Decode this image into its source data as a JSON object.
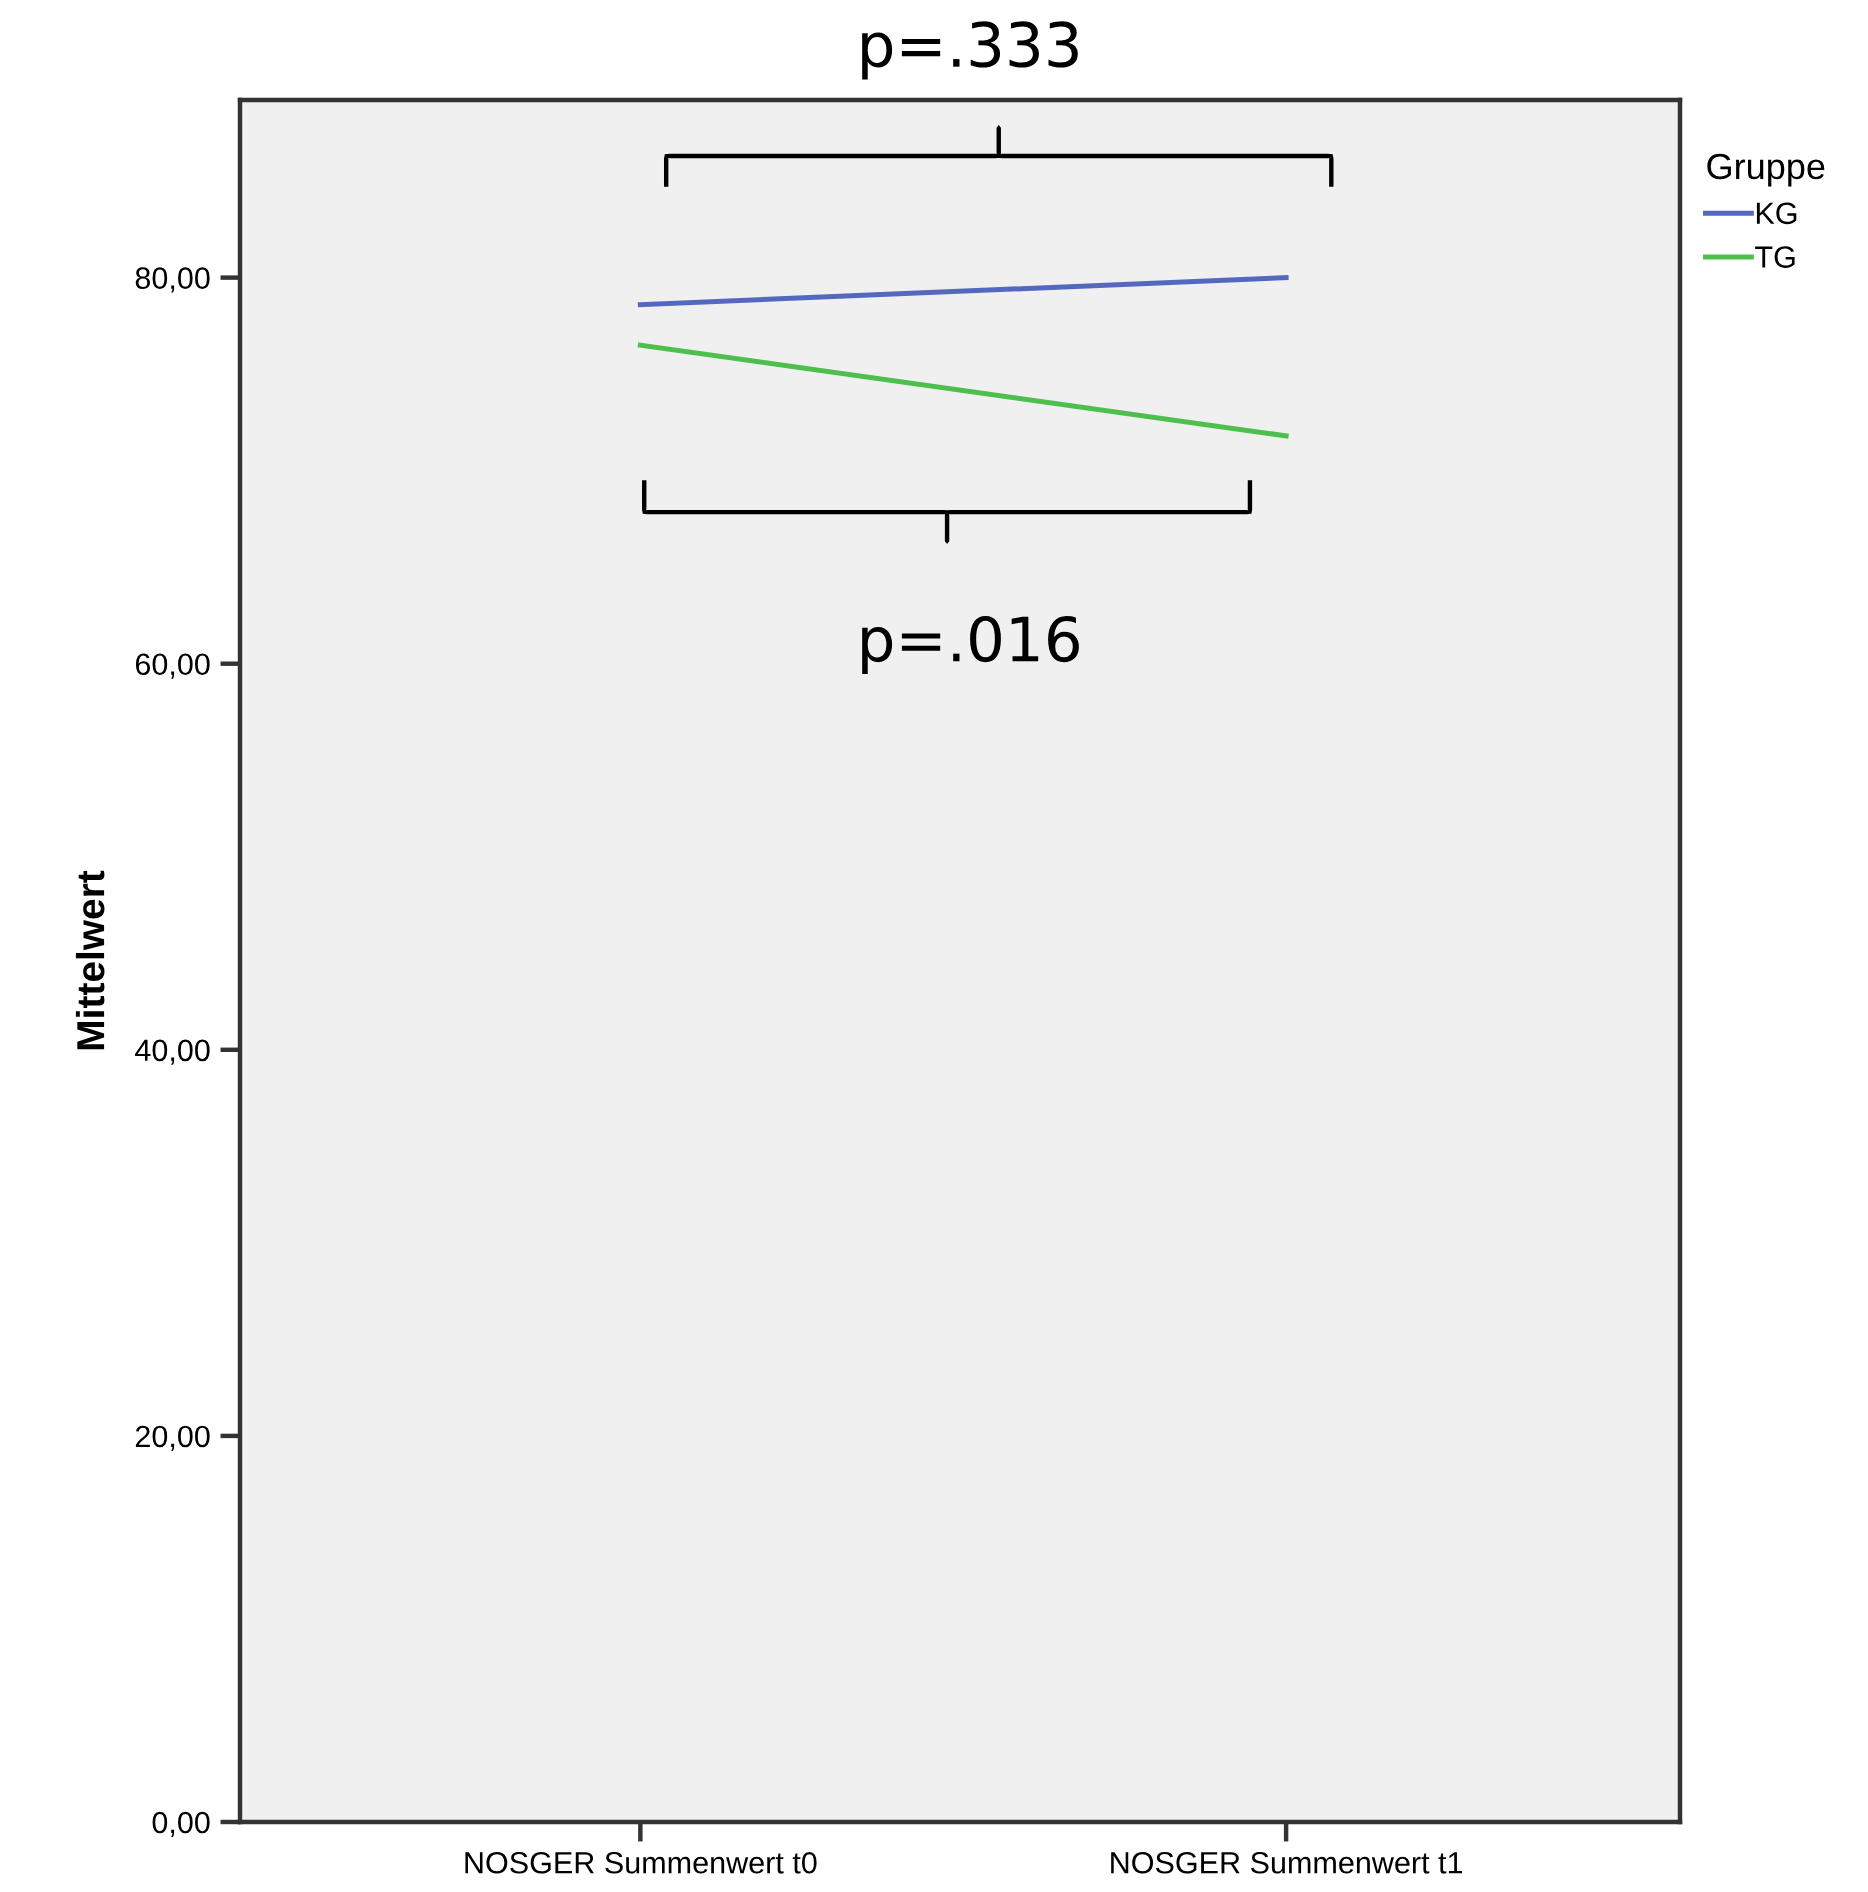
{
  "chart_data": {
    "type": "line",
    "ylabel": "Mittelwert",
    "legend_title": "Gruppe",
    "legend": "top right",
    "grid": false,
    "marker": "none",
    "line_style": "solid",
    "categories": [
      "NOSGER Summenwert t0",
      "NOSGER Summenwert t1"
    ],
    "series": [
      {
        "name": "KG",
        "color": "#5468c0",
        "values": [
          78.6,
          80.0
        ]
      },
      {
        "name": "TG",
        "color": "#4cbf4c",
        "values": [
          76.5,
          71.8
        ]
      }
    ],
    "ylim": [
      0,
      89.2
    ],
    "yticks": [
      {
        "value": 0,
        "label": "0,00"
      },
      {
        "value": 20,
        "label": "20,00"
      },
      {
        "value": 40,
        "label": "40,00"
      },
      {
        "value": 60,
        "label": "60,00"
      },
      {
        "value": 80,
        "label": "80,00"
      }
    ],
    "annotations": [
      "p=.333",
      "p=.016"
    ]
  }
}
